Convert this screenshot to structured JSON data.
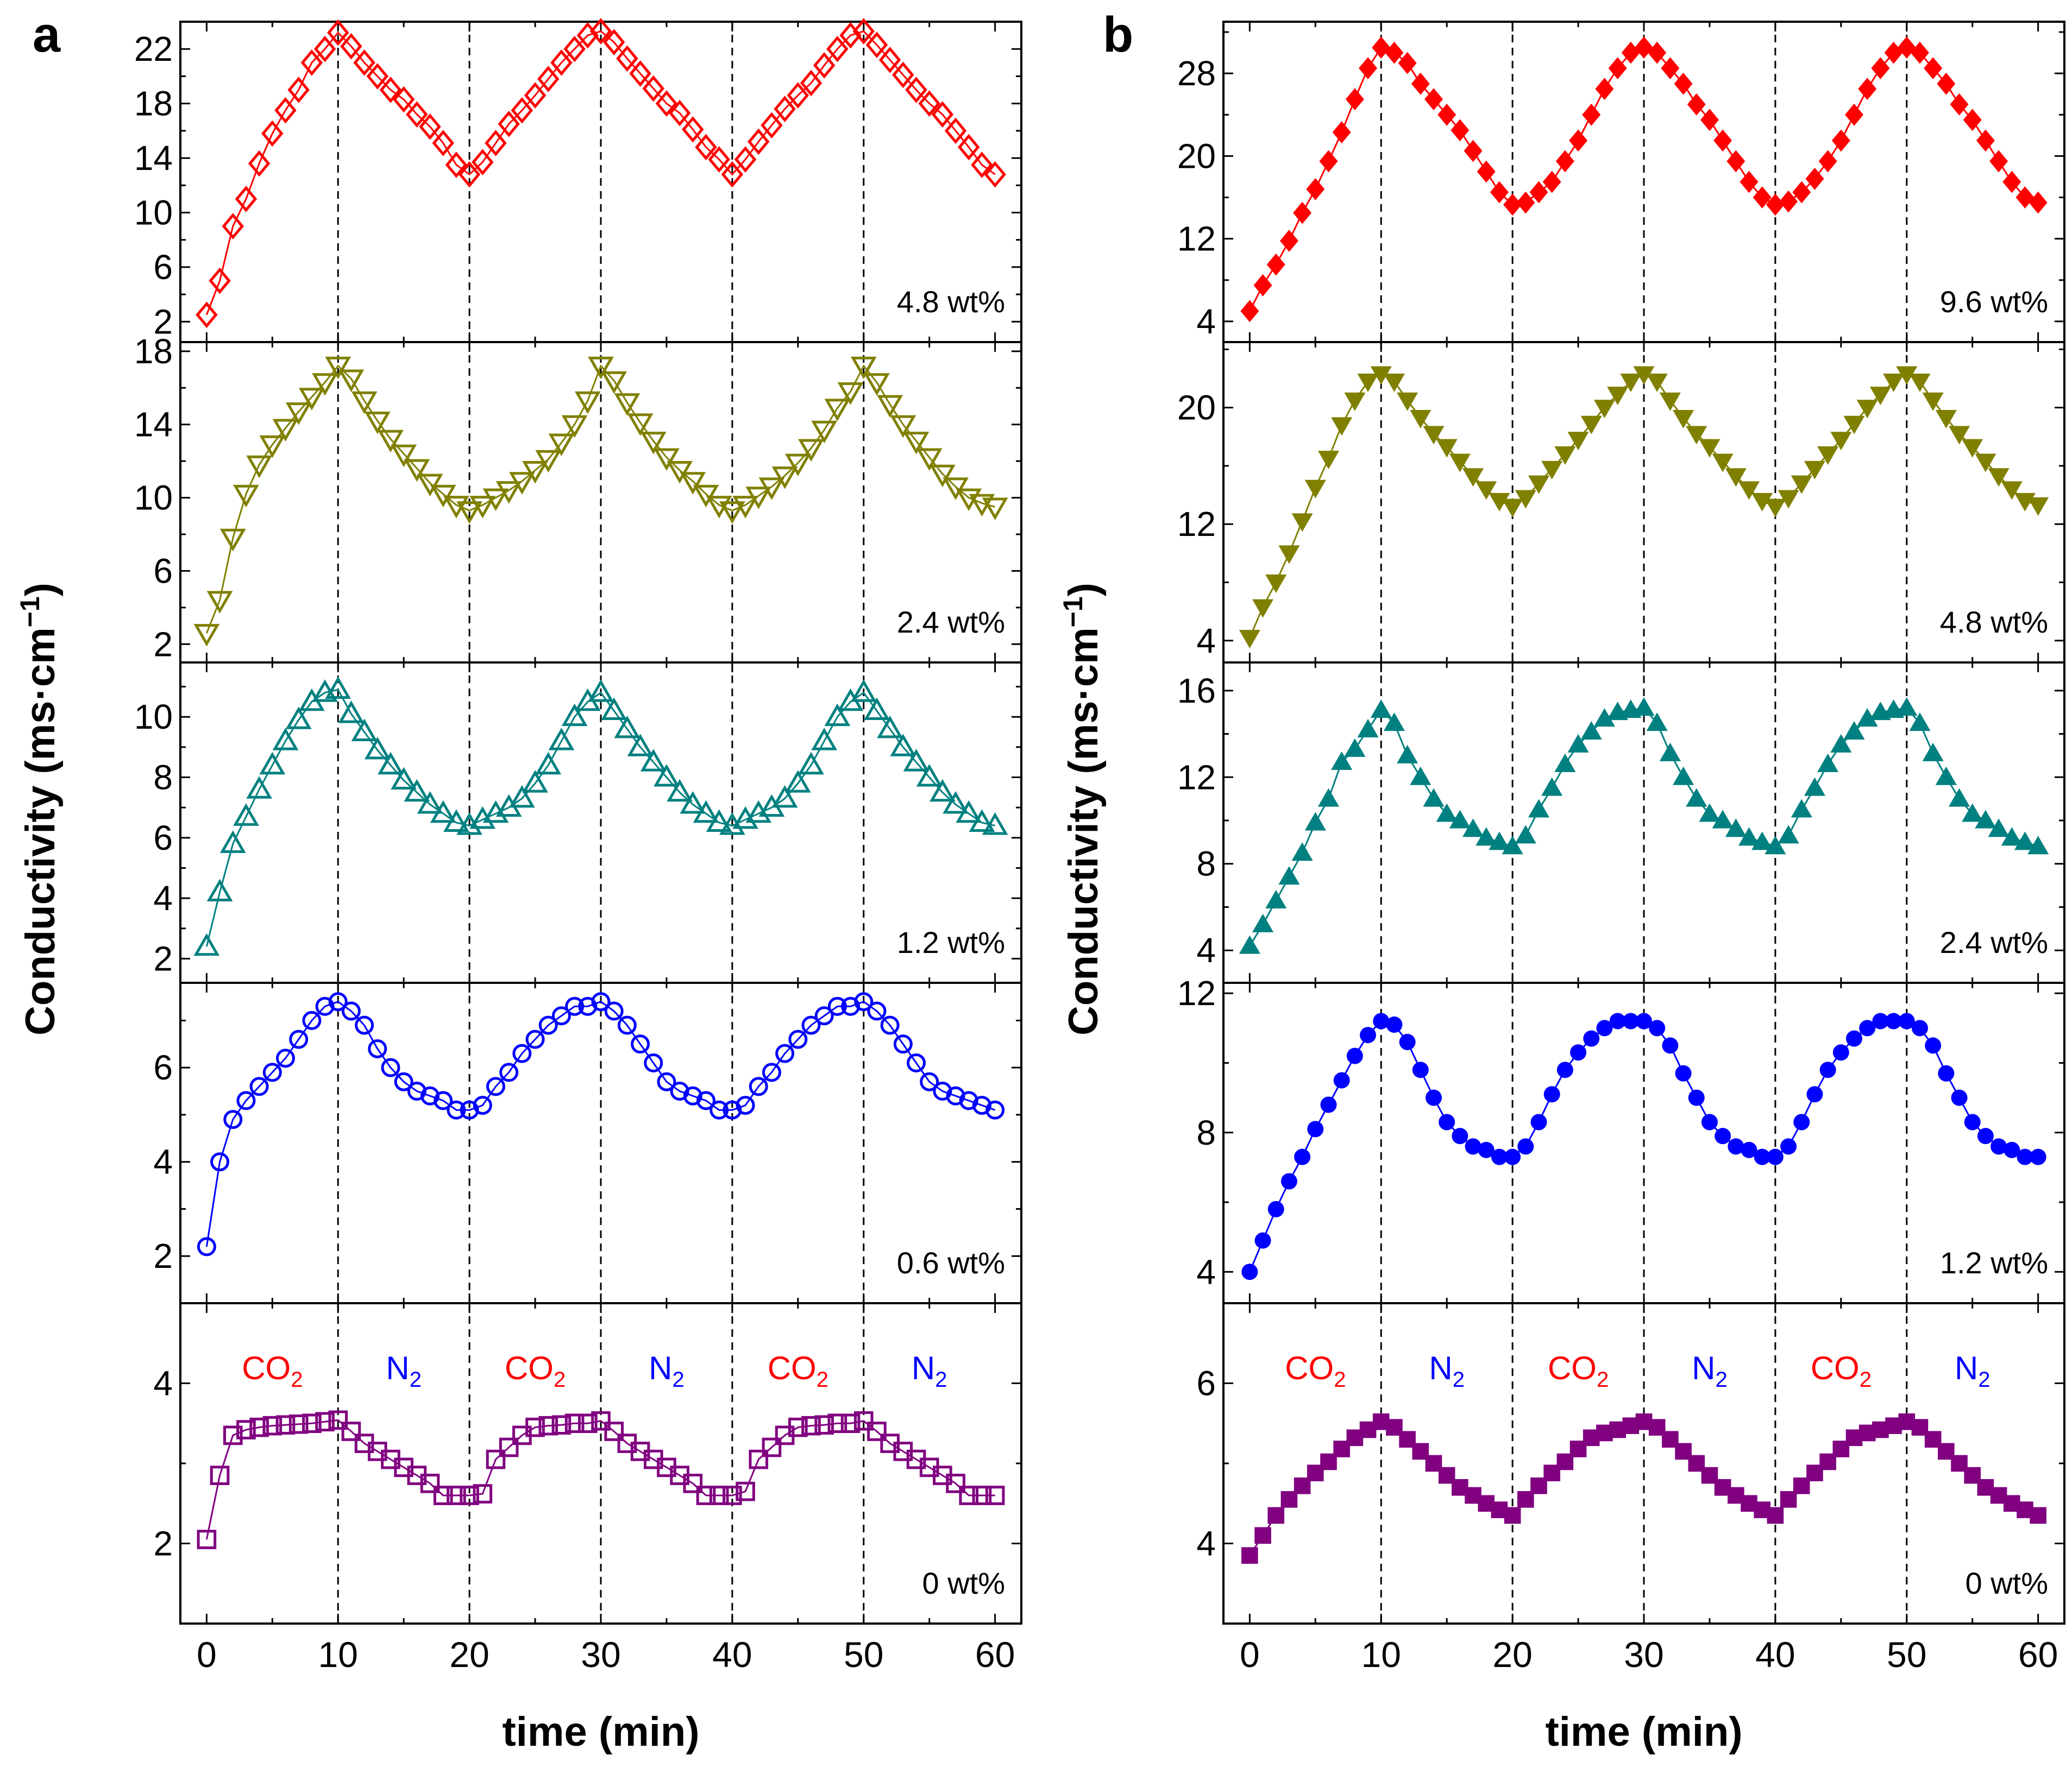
{
  "figure": {
    "panel_labels": [
      "a",
      "b"
    ],
    "ylabel_text": "Conductivity (ms·cm",
    "ylabel_exp": "−1",
    "ylabel_close": ")",
    "xlabel": "time (min)",
    "xticks": [
      "0",
      "10",
      "20",
      "30",
      "40",
      "50",
      "60"
    ],
    "gas_labels": [
      {
        "label": "CO",
        "sub": "2",
        "color": "#ff0000"
      },
      {
        "label": "N",
        "sub": "2",
        "color": "#0000ff"
      },
      {
        "label": "CO",
        "sub": "2",
        "color": "#ff0000"
      },
      {
        "label": "N",
        "sub": "2",
        "color": "#0000ff"
      },
      {
        "label": "CO",
        "sub": "2",
        "color": "#ff0000"
      },
      {
        "label": "N",
        "sub": "2",
        "color": "#0000ff"
      }
    ]
  },
  "chart_data": [
    {
      "type": "line",
      "panel": "a",
      "label": "4.8 wt%",
      "color": "#ff0000",
      "marker": "diamond-open",
      "xlim": [
        -2,
        62
      ],
      "ylim": [
        0.5,
        24
      ],
      "yticks": [
        2,
        6,
        10,
        14,
        18,
        22
      ],
      "xlabel": "time (min)",
      "ylabel": "Conductivity (ms·cm−1)",
      "x": [
        0,
        1,
        2,
        3,
        4,
        5,
        6,
        7,
        8,
        9,
        10,
        11,
        12,
        13,
        14,
        15,
        16,
        17,
        18,
        19,
        20,
        21,
        22,
        23,
        24,
        25,
        26,
        27,
        28,
        29,
        30,
        31,
        32,
        33,
        34,
        35,
        36,
        37,
        38,
        39,
        40,
        41,
        42,
        43,
        44,
        45,
        46,
        47,
        48,
        49,
        50,
        51,
        52,
        53,
        54,
        55,
        56,
        57,
        58,
        59,
        60
      ],
      "y": [
        2.5,
        5,
        9,
        11,
        13.6,
        15.8,
        17.5,
        19,
        21,
        22,
        23.2,
        22.2,
        21,
        20,
        19,
        18.3,
        17.2,
        16.3,
        15.1,
        13.5,
        12.8,
        13.7,
        15.1,
        16.5,
        17.5,
        18.6,
        19.8,
        21,
        22,
        23,
        23.3,
        22.5,
        21.3,
        20.2,
        19.1,
        18,
        17.3,
        16.1,
        14.8,
        13.9,
        12.8,
        13.9,
        15.2,
        16.4,
        17.6,
        18.6,
        19.5,
        20.8,
        22,
        23,
        23.3,
        22.3,
        21.2,
        20.1,
        19,
        18,
        17.2,
        16,
        14.8,
        13.5,
        12.8
      ]
    },
    {
      "type": "line",
      "panel": "a",
      "label": "2.4 wt%",
      "color": "#808000",
      "marker": "triangle-down-open",
      "xlim": [
        -2,
        62
      ],
      "ylim": [
        1,
        18.5
      ],
      "yticks": [
        2,
        6,
        10,
        14,
        18
      ],
      "x": [
        0,
        1,
        2,
        3,
        4,
        5,
        6,
        7,
        8,
        9,
        10,
        11,
        12,
        13,
        14,
        15,
        16,
        17,
        18,
        19,
        20,
        21,
        22,
        23,
        24,
        25,
        26,
        27,
        28,
        29,
        30,
        31,
        32,
        33,
        34,
        35,
        36,
        37,
        38,
        39,
        40,
        41,
        42,
        43,
        44,
        45,
        46,
        47,
        48,
        49,
        50,
        51,
        52,
        53,
        54,
        55,
        56,
        57,
        58,
        59,
        60
      ],
      "y": [
        2.6,
        4.4,
        7.8,
        10.2,
        11.8,
        12.9,
        13.8,
        14.7,
        15.5,
        16.3,
        17.2,
        16.5,
        15.3,
        14.2,
        13.2,
        12.4,
        11.6,
        10.8,
        10.2,
        9.6,
        9.3,
        9.6,
        10,
        10.4,
        10.9,
        11.5,
        12.1,
        13,
        14,
        15.3,
        17.2,
        16.4,
        15.2,
        14.1,
        13.1,
        12.2,
        11.5,
        10.9,
        10.2,
        9.6,
        9.3,
        9.6,
        10.1,
        10.6,
        11.2,
        11.9,
        12.7,
        13.7,
        14.9,
        15.8,
        17.2,
        16.3,
        15.1,
        14,
        13.1,
        12.2,
        11.3,
        10.6,
        10,
        9.7,
        9.5
      ]
    },
    {
      "type": "line",
      "panel": "a",
      "label": "1.2 wt%",
      "color": "#008080",
      "marker": "triangle-up-open",
      "xlim": [
        -2,
        62
      ],
      "ylim": [
        1.2,
        11.8
      ],
      "yticks": [
        2,
        4,
        6,
        8,
        10
      ],
      "x": [
        0,
        1,
        2,
        3,
        4,
        5,
        6,
        7,
        8,
        9,
        10,
        11,
        12,
        13,
        14,
        15,
        16,
        17,
        18,
        19,
        20,
        21,
        22,
        23,
        24,
        25,
        26,
        27,
        28,
        29,
        30,
        31,
        32,
        33,
        34,
        35,
        36,
        37,
        38,
        39,
        40,
        41,
        42,
        43,
        44,
        45,
        46,
        47,
        48,
        49,
        50,
        51,
        52,
        53,
        54,
        55,
        56,
        57,
        58,
        59,
        60
      ],
      "y": [
        2.4,
        4.2,
        5.8,
        6.7,
        7.6,
        8.4,
        9.2,
        9.9,
        10.5,
        10.8,
        10.9,
        10.1,
        9.5,
        8.9,
        8.4,
        7.9,
        7.5,
        7.1,
        6.8,
        6.5,
        6.4,
        6.6,
        6.8,
        7,
        7.3,
        7.8,
        8.4,
        9.2,
        10,
        10.5,
        10.8,
        10.2,
        9.6,
        9,
        8.5,
        8,
        7.5,
        7.1,
        6.8,
        6.5,
        6.4,
        6.6,
        6.8,
        7,
        7.3,
        7.8,
        8.4,
        9.2,
        10,
        10.5,
        10.8,
        10.2,
        9.6,
        9,
        8.5,
        8,
        7.5,
        7.1,
        6.8,
        6.5,
        6.4
      ]
    },
    {
      "type": "line",
      "panel": "a",
      "label": "0.6 wt%",
      "color": "#0000ff",
      "marker": "circle-open",
      "xlim": [
        -2,
        62
      ],
      "ylim": [
        1,
        7.8
      ],
      "yticks": [
        2,
        4,
        6
      ],
      "x": [
        0,
        1,
        2,
        3,
        4,
        5,
        6,
        7,
        8,
        9,
        10,
        11,
        12,
        13,
        14,
        15,
        16,
        17,
        18,
        19,
        20,
        21,
        22,
        23,
        24,
        25,
        26,
        27,
        28,
        29,
        30,
        31,
        32,
        33,
        34,
        35,
        36,
        37,
        38,
        39,
        40,
        41,
        42,
        43,
        44,
        45,
        46,
        47,
        48,
        49,
        50,
        51,
        52,
        53,
        54,
        55,
        56,
        57,
        58,
        59,
        60
      ],
      "y": [
        2.2,
        4,
        4.9,
        5.3,
        5.6,
        5.9,
        6.2,
        6.6,
        7,
        7.3,
        7.4,
        7.2,
        6.9,
        6.4,
        6,
        5.7,
        5.5,
        5.4,
        5.3,
        5.1,
        5.1,
        5.2,
        5.6,
        5.9,
        6.3,
        6.6,
        6.9,
        7.1,
        7.3,
        7.3,
        7.4,
        7.2,
        6.9,
        6.5,
        6.1,
        5.7,
        5.5,
        5.4,
        5.3,
        5.1,
        5.1,
        5.2,
        5.6,
        5.9,
        6.3,
        6.6,
        6.9,
        7.1,
        7.3,
        7.3,
        7.4,
        7.2,
        6.9,
        6.5,
        6.1,
        5.7,
        5.5,
        5.4,
        5.3,
        5.2,
        5.1
      ]
    },
    {
      "type": "line",
      "panel": "a",
      "label": "0 wt%",
      "color": "#800080",
      "marker": "square-open",
      "xlim": [
        -2,
        62
      ],
      "ylim": [
        1,
        5
      ],
      "yticks": [
        2,
        4
      ],
      "x": [
        0,
        1,
        2,
        3,
        4,
        5,
        6,
        7,
        8,
        9,
        10,
        11,
        12,
        13,
        14,
        15,
        16,
        17,
        18,
        19,
        20,
        21,
        22,
        23,
        24,
        25,
        26,
        27,
        28,
        29,
        30,
        31,
        32,
        33,
        34,
        35,
        36,
        37,
        38,
        39,
        40,
        41,
        42,
        43,
        44,
        45,
        46,
        47,
        48,
        49,
        50,
        51,
        52,
        53,
        54,
        55,
        56,
        57,
        58,
        59,
        60
      ],
      "y": [
        2.05,
        2.85,
        3.35,
        3.42,
        3.45,
        3.47,
        3.48,
        3.49,
        3.5,
        3.52,
        3.54,
        3.4,
        3.25,
        3.15,
        3.05,
        2.95,
        2.85,
        2.75,
        2.6,
        2.6,
        2.6,
        2.62,
        3.05,
        3.2,
        3.35,
        3.45,
        3.47,
        3.48,
        3.5,
        3.5,
        3.53,
        3.4,
        3.25,
        3.15,
        3.05,
        2.95,
        2.85,
        2.75,
        2.6,
        2.6,
        2.6,
        2.65,
        3.05,
        3.2,
        3.35,
        3.45,
        3.47,
        3.48,
        3.5,
        3.5,
        3.53,
        3.4,
        3.25,
        3.15,
        3.05,
        2.95,
        2.85,
        2.75,
        2.6,
        2.6,
        2.6
      ]
    },
    {
      "type": "line",
      "panel": "b",
      "label": "9.6 wt%",
      "color": "#ff0000",
      "marker": "diamond-filled",
      "xlim": [
        -2,
        62
      ],
      "ylim": [
        2,
        33
      ],
      "yticks": [
        4,
        12,
        20,
        28
      ],
      "x": [
        0,
        1,
        2,
        3,
        4,
        5,
        6,
        7,
        8,
        9,
        10,
        11,
        12,
        13,
        14,
        15,
        16,
        17,
        18,
        19,
        20,
        21,
        22,
        23,
        24,
        25,
        26,
        27,
        28,
        29,
        30,
        31,
        32,
        33,
        34,
        35,
        36,
        37,
        38,
        39,
        40,
        41,
        42,
        43,
        44,
        45,
        46,
        47,
        48,
        49,
        50,
        51,
        52,
        53,
        54,
        55,
        56,
        57,
        58,
        59,
        60
      ],
      "y": [
        5,
        7.5,
        9.5,
        11.8,
        14.5,
        16.8,
        19.5,
        22.3,
        25.5,
        28.5,
        30.5,
        30,
        29,
        27,
        25.5,
        24,
        22.5,
        20.5,
        18.5,
        16.5,
        15.3,
        15.5,
        16.5,
        17.5,
        19.5,
        21.5,
        24,
        26.5,
        28.5,
        30,
        30.5,
        30,
        28.5,
        27,
        25,
        23.5,
        21.5,
        19.5,
        17.5,
        16,
        15.3,
        15.6,
        16.5,
        17.8,
        19.5,
        21.5,
        24,
        26.5,
        28.5,
        30,
        30.5,
        30,
        28.5,
        27,
        25,
        23.5,
        21.5,
        19.5,
        17.5,
        16,
        15.5
      ]
    },
    {
      "type": "line",
      "panel": "b",
      "label": "4.8 wt%",
      "color": "#808000",
      "marker": "triangle-down-filled",
      "xlim": [
        -2,
        62
      ],
      "ylim": [
        2.5,
        24.5
      ],
      "yticks": [
        4,
        12,
        20
      ],
      "x": [
        0,
        1,
        2,
        3,
        4,
        5,
        6,
        7,
        8,
        9,
        10,
        11,
        12,
        13,
        14,
        15,
        16,
        17,
        18,
        19,
        20,
        21,
        22,
        23,
        24,
        25,
        26,
        27,
        28,
        29,
        30,
        31,
        32,
        33,
        34,
        35,
        36,
        37,
        38,
        39,
        40,
        41,
        42,
        43,
        44,
        45,
        46,
        47,
        48,
        49,
        50,
        51,
        52,
        53,
        54,
        55,
        56,
        57,
        58,
        59,
        60
      ],
      "y": [
        4.2,
        6.3,
        8,
        10,
        12.2,
        14.5,
        16.5,
        18.8,
        20.5,
        21.8,
        22.3,
        21.8,
        20.5,
        19.3,
        18.2,
        17.3,
        16.3,
        15.3,
        14.4,
        13.6,
        13.2,
        13.8,
        14.8,
        15.8,
        16.8,
        17.8,
        18.9,
        20,
        20.9,
        21.8,
        22.3,
        21.8,
        20.5,
        19.3,
        18.2,
        17.3,
        16.3,
        15.3,
        14.4,
        13.6,
        13.2,
        13.8,
        14.8,
        15.8,
        16.8,
        17.8,
        18.9,
        20,
        20.9,
        21.8,
        22.3,
        21.8,
        20.5,
        19.3,
        18.2,
        17.3,
        16.3,
        15.3,
        14.4,
        13.6,
        13.3
      ]
    },
    {
      "type": "line",
      "panel": "b",
      "label": "2.4 wt%",
      "color": "#008080",
      "marker": "triangle-up-filled",
      "xlim": [
        -2,
        62
      ],
      "ylim": [
        2.5,
        17.3
      ],
      "yticks": [
        4,
        8,
        12,
        16
      ],
      "x": [
        0,
        1,
        2,
        3,
        4,
        5,
        6,
        7,
        8,
        9,
        10,
        11,
        12,
        13,
        14,
        15,
        16,
        17,
        18,
        19,
        20,
        21,
        22,
        23,
        24,
        25,
        26,
        27,
        28,
        29,
        30,
        31,
        32,
        33,
        34,
        35,
        36,
        37,
        38,
        39,
        40,
        41,
        42,
        43,
        44,
        45,
        46,
        47,
        48,
        49,
        50,
        51,
        52,
        53,
        54,
        55,
        56,
        57,
        58,
        59,
        60
      ],
      "y": [
        4.2,
        5.2,
        6.3,
        7.4,
        8.5,
        9.9,
        11,
        12.7,
        13.3,
        14.2,
        15.1,
        14.5,
        13,
        12,
        11,
        10.3,
        10,
        9.6,
        9.2,
        9,
        8.8,
        9.3,
        10.5,
        11.5,
        12.6,
        13.5,
        14.1,
        14.7,
        15,
        15.1,
        15.2,
        14.5,
        13.1,
        12,
        11,
        10.3,
        10,
        9.6,
        9.2,
        9,
        8.8,
        9.3,
        10.5,
        11.5,
        12.6,
        13.5,
        14.1,
        14.7,
        15,
        15.1,
        15.2,
        14.5,
        13.1,
        12,
        11,
        10.3,
        10,
        9.6,
        9.2,
        9,
        8.8
      ]
    },
    {
      "type": "line",
      "panel": "b",
      "label": "1.2 wt%",
      "color": "#0000ff",
      "marker": "circle-filled",
      "xlim": [
        -2,
        62
      ],
      "ylim": [
        3.1,
        12.3
      ],
      "yticks": [
        4,
        8,
        12
      ],
      "x": [
        0,
        1,
        2,
        3,
        4,
        5,
        6,
        7,
        8,
        9,
        10,
        11,
        12,
        13,
        14,
        15,
        16,
        17,
        18,
        19,
        20,
        21,
        22,
        23,
        24,
        25,
        26,
        27,
        28,
        29,
        30,
        31,
        32,
        33,
        34,
        35,
        36,
        37,
        38,
        39,
        40,
        41,
        42,
        43,
        44,
        45,
        46,
        47,
        48,
        49,
        50,
        51,
        52,
        53,
        54,
        55,
        56,
        57,
        58,
        59,
        60
      ],
      "y": [
        4,
        4.9,
        5.8,
        6.6,
        7.3,
        8.1,
        8.8,
        9.5,
        10.2,
        10.8,
        11.2,
        11.1,
        10.6,
        9.8,
        9,
        8.3,
        7.9,
        7.6,
        7.5,
        7.3,
        7.3,
        7.6,
        8.3,
        9.1,
        9.8,
        10.3,
        10.7,
        11,
        11.2,
        11.2,
        11.2,
        11,
        10.5,
        9.7,
        9,
        8.3,
        7.9,
        7.6,
        7.5,
        7.3,
        7.3,
        7.6,
        8.3,
        9.1,
        9.8,
        10.3,
        10.7,
        11,
        11.2,
        11.2,
        11.2,
        11,
        10.5,
        9.7,
        9,
        8.3,
        7.9,
        7.6,
        7.5,
        7.3,
        7.3
      ]
    },
    {
      "type": "line",
      "panel": "b",
      "label": "0 wt%",
      "color": "#800080",
      "marker": "square-filled",
      "xlim": [
        -2,
        62
      ],
      "ylim": [
        3,
        7
      ],
      "yticks": [
        4,
        6
      ],
      "x": [
        0,
        1,
        2,
        3,
        4,
        5,
        6,
        7,
        8,
        9,
        10,
        11,
        12,
        13,
        14,
        15,
        16,
        17,
        18,
        19,
        20,
        21,
        22,
        23,
        24,
        25,
        26,
        27,
        28,
        29,
        30,
        31,
        32,
        33,
        34,
        35,
        36,
        37,
        38,
        39,
        40,
        41,
        42,
        43,
        44,
        45,
        46,
        47,
        48,
        49,
        50,
        51,
        52,
        53,
        54,
        55,
        56,
        57,
        58,
        59,
        60
      ],
      "y": [
        3.85,
        4.1,
        4.35,
        4.55,
        4.72,
        4.88,
        5.02,
        5.18,
        5.32,
        5.42,
        5.52,
        5.45,
        5.3,
        5.15,
        5,
        4.85,
        4.7,
        4.6,
        4.5,
        4.42,
        4.35,
        4.55,
        4.72,
        4.88,
        5.02,
        5.18,
        5.32,
        5.38,
        5.42,
        5.47,
        5.52,
        5.45,
        5.3,
        5.15,
        5,
        4.85,
        4.7,
        4.6,
        4.5,
        4.42,
        4.35,
        4.55,
        4.72,
        4.88,
        5.02,
        5.18,
        5.32,
        5.38,
        5.42,
        5.47,
        5.52,
        5.45,
        5.3,
        5.15,
        5,
        4.85,
        4.7,
        4.6,
        4.5,
        4.42,
        4.35
      ]
    }
  ]
}
